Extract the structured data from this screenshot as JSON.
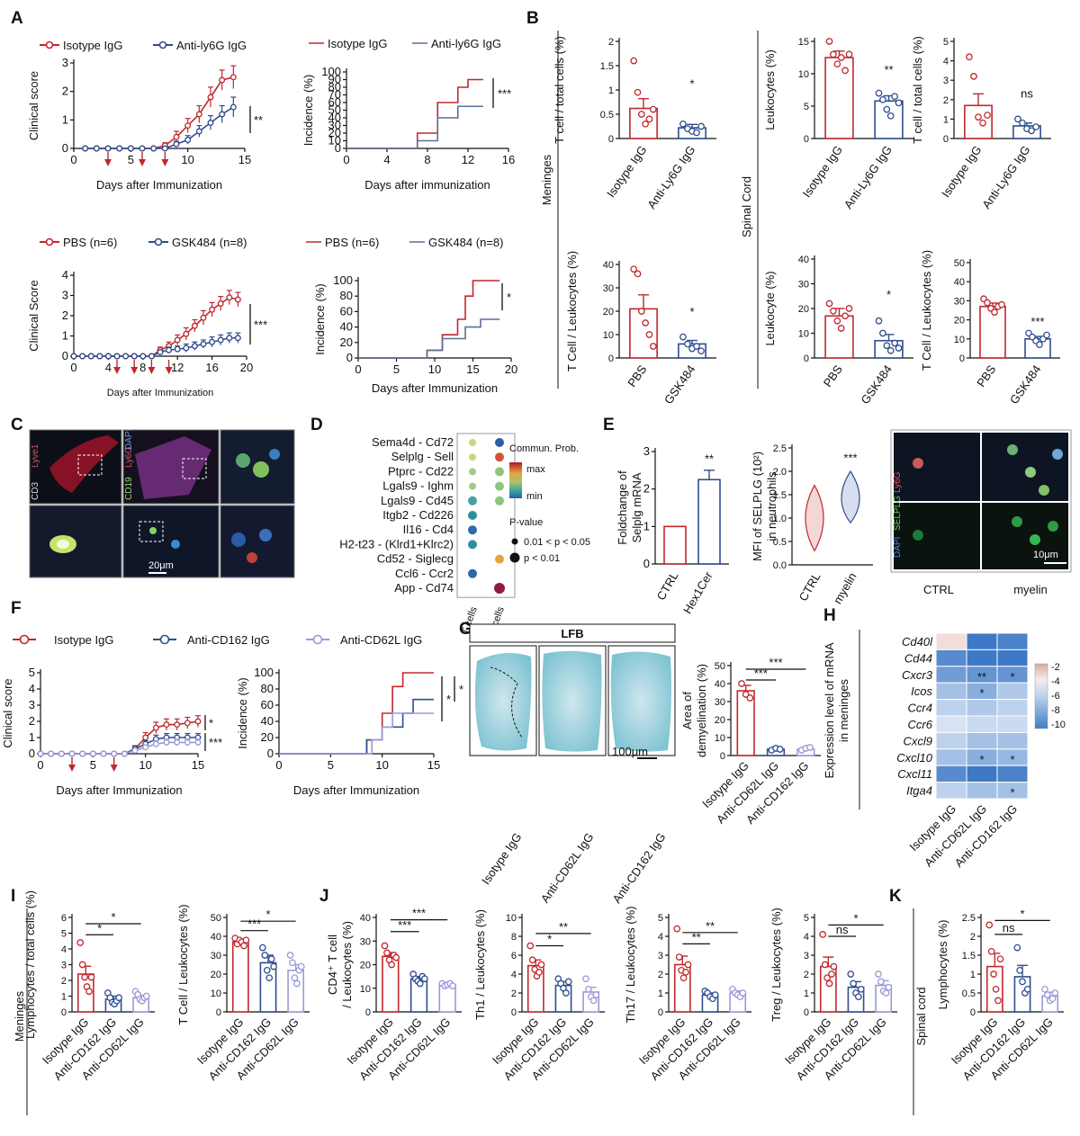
{
  "colors": {
    "red": "#c0282d",
    "blue": "#2f4d8f",
    "lav": "#9b99d8",
    "ctrl": "#c0282d"
  },
  "panels": [
    "A",
    "B",
    "C",
    "D",
    "E",
    "F",
    "G",
    "H",
    "I",
    "J",
    "K"
  ],
  "A": {
    "legend_top": [
      "Isotype IgG",
      "Anti-ly6G IgG"
    ],
    "legend_bottom": [
      "PBS (n=6)",
      "GSK484 (n=8)"
    ],
    "clin_ylabel": "Clinical score",
    "clin_ylabel2": "Clinical  Score",
    "inc_ylabel": "Incidence (%)",
    "xlabel": "Days after Immunization",
    "xlabel_inc": "Days after immunization",
    "xlabel_inc2": "Days after Immunization",
    "sig": [
      "**",
      "***",
      "***",
      "*"
    ]
  },
  "B": {
    "side_meninges": "Meninges",
    "side_spinal": "Spinal Cord",
    "ylabels": [
      "T cell / total cells (%)",
      "Leukocytes (%)",
      "T cell / total cells (%)",
      "T Cell / Leukocytes (%)",
      "Leukocyte (%)",
      "T Cell / Leukocytes (%)"
    ],
    "xlabels_top": [
      "Isotype IgG",
      "Anti-Ly6G IgG"
    ],
    "xlabels_bottom": [
      "PBS",
      "GSK484"
    ],
    "sig": [
      "*",
      "**",
      "ns",
      "*",
      "*",
      "***"
    ]
  },
  "C": {
    "ch1": "CD3",
    "ch2": "CD19",
    "lyve": "Lyve1",
    "ly6g": "Ly6G",
    "dapi": "DAPI",
    "scale": "20μm"
  },
  "D": {
    "pairs": [
      "Sema4d  - Cd72",
      "Selplg  - Sell",
      "Ptprc  - Cd22",
      "Lgals9  - Ighm",
      "Lgals9  - Cd45",
      "Itgb2  - Cd226",
      "Il16  - Cd4",
      "H2-t23  - (Klrd1+Klrc2)",
      "Cd52  - Siglecg",
      "Ccl6  - Ccr2",
      "App  - Cd74"
    ],
    "cols": [
      "T cells",
      "B cells"
    ],
    "legend_title": "Commun. Prob.",
    "max": "max",
    "min": "min",
    "pvalue_title": "P-value",
    "p1": "0.01 < p < 0.05",
    "p2": "p < 0.01"
  },
  "E": {
    "ylabel1a": "Foldchange of",
    "ylabel1b": "Selplg mRNA",
    "x1": [
      "CTRL",
      "Hex1Cer"
    ],
    "ylabel2a": "MFI of SELPLG (10²)",
    "ylabel2b": "in neutrophils",
    "x2": [
      "CTRL",
      "myelin"
    ],
    "img_labels": [
      "CTRL",
      "myelin"
    ],
    "channels": [
      "DAPI",
      "SELPLG",
      "Ly6G"
    ],
    "scale": "10μm",
    "sig": [
      "**",
      "***"
    ]
  },
  "F": {
    "legend": [
      "Isotype IgG",
      "Anti-CD162 IgG",
      "Anti-CD62L IgG"
    ],
    "clin_ylabel": "Clinical score",
    "inc_ylabel": "Incidence (%)",
    "xlabel": "Days after Immunization",
    "sig": [
      "*",
      "***",
      "*",
      "*"
    ]
  },
  "G": {
    "title": "LFB",
    "images": [
      "Isotype IgG",
      "Anti-CD62L IgG",
      "Anti-CD162 IgG"
    ],
    "scale": "100μm",
    "ylabel1": "Area of",
    "ylabel2": "demyelination (%)",
    "x": [
      "Isotype IgG",
      "Anti-CD62L IgG",
      "Anti-CD162 IgG"
    ],
    "sig": [
      "***",
      "***"
    ]
  },
  "H": {
    "genes": [
      "Cd40l",
      "Cd44",
      "Cxcr3",
      "Icos",
      "Ccr4",
      "Ccr6",
      "Cxcl9",
      "Cxcl10",
      "Cxcl11",
      "Itga4"
    ],
    "cols": [
      "Isotype IgG",
      "Anti-CD62L IgG",
      "Anti-CD162 IgG"
    ],
    "ylabel1": "Expression level of mRNA",
    "ylabel2": "in meninges",
    "scale": [
      "-2",
      "-4",
      "-6",
      "-8",
      "-10"
    ],
    "stars": [
      "**",
      "*",
      "*",
      "*",
      "*",
      "*"
    ]
  },
  "I": {
    "side": "Meninges",
    "ylabels": [
      "Lymphocytes / total cells (%)",
      "T Cell / Leukocytes (%)"
    ],
    "x": [
      "Isotype IgG",
      "Anti-CD162 IgG",
      "Anti-CD62L IgG"
    ],
    "sig": [
      "*",
      "*",
      "***",
      "*"
    ]
  },
  "J": {
    "ylabels": [
      "CD4⁺ T cell",
      "/ Leukocytes (%)",
      "Th1 / Leukocytes (%)",
      "Th17 / Leukocytes (%)",
      "Treg / Leukocytes (%)"
    ],
    "x": [
      "Isotype IgG",
      "Anti-CD162 IgG",
      "Anti-CD62L IgG"
    ],
    "sig": [
      "***",
      "***",
      "*",
      "**",
      "**",
      "**",
      "ns",
      "*"
    ]
  },
  "K": {
    "side": "Spinal cord",
    "ylabel": "Lymphocytes (%)",
    "x": [
      "Isotype IgG",
      "Anti-CD162 IgG",
      "Anti-CD62L IgG"
    ],
    "sig": [
      "ns",
      "*"
    ]
  }
}
